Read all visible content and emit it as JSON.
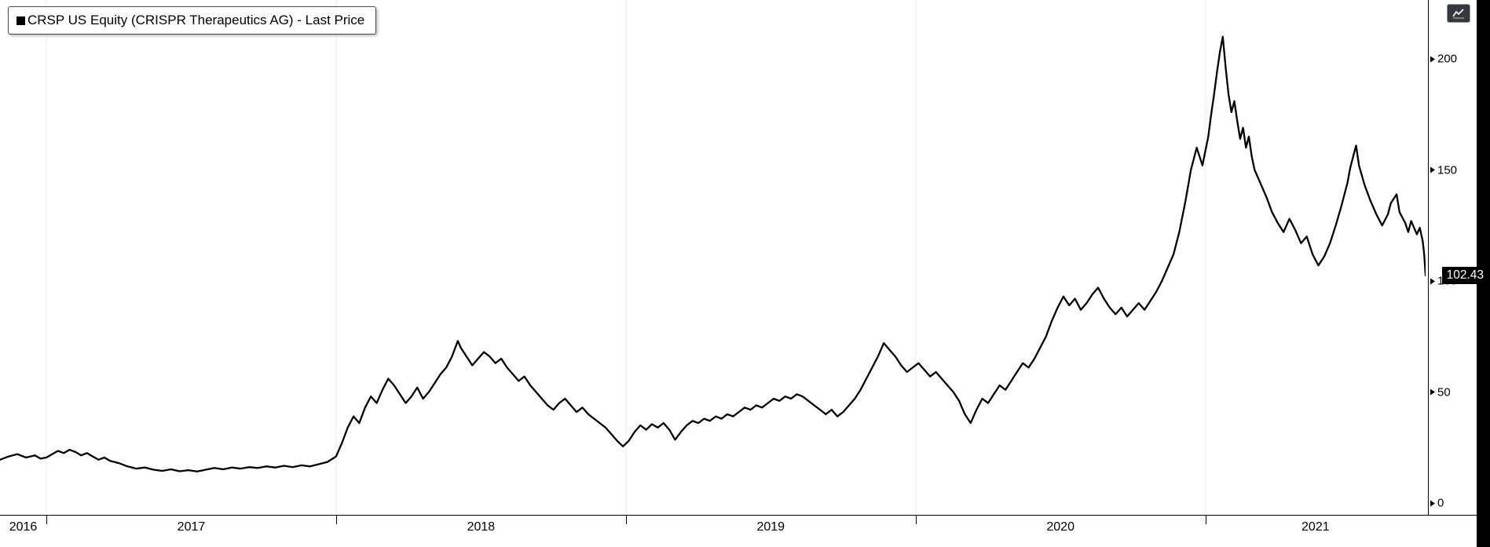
{
  "window": {
    "background": "#ffffff"
  },
  "legend": {
    "label": "CRSP US Equity (CRISPR Therapeutics AG) - Last Price",
    "swatch_color": "#000000"
  },
  "chart_data": {
    "type": "line",
    "title": "CRSP US Equity (CRISPR Therapeutics AG) - Last Price",
    "xlabel": "",
    "ylabel": "",
    "xlim": [
      2016.84,
      2021.76
    ],
    "ylim": [
      0,
      200
    ],
    "y_ticks": [
      0,
      50,
      100,
      150,
      200
    ],
    "x_ticks": [
      {
        "year": 2016,
        "label": "2016"
      },
      {
        "year": 2017,
        "label": "2017"
      },
      {
        "year": 2018,
        "label": "2018"
      },
      {
        "year": 2019,
        "label": "2019"
      },
      {
        "year": 2020,
        "label": "2020"
      },
      {
        "year": 2021,
        "label": "2021"
      }
    ],
    "grid": "vertical-year-boundaries",
    "legend_position": "top-left",
    "line_color": "#000000",
    "background": "#ffffff",
    "last_price": 102.43,
    "last_price_label": "102.43",
    "series": [
      {
        "name": "CRSP US Equity - Last Price",
        "points": [
          [
            2016.84,
            19.5
          ],
          [
            2016.87,
            21
          ],
          [
            2016.9,
            22
          ],
          [
            2016.93,
            20.5
          ],
          [
            2016.96,
            21.5
          ],
          [
            2016.98,
            20
          ],
          [
            2017.0,
            20.5
          ],
          [
            2017.02,
            22
          ],
          [
            2017.04,
            23.5
          ],
          [
            2017.06,
            22.5
          ],
          [
            2017.08,
            24
          ],
          [
            2017.1,
            23
          ],
          [
            2017.12,
            21.5
          ],
          [
            2017.14,
            22.5
          ],
          [
            2017.16,
            21
          ],
          [
            2017.18,
            19.5
          ],
          [
            2017.2,
            20.5
          ],
          [
            2017.22,
            19
          ],
          [
            2017.25,
            18
          ],
          [
            2017.28,
            16.5
          ],
          [
            2017.31,
            15.5
          ],
          [
            2017.34,
            16
          ],
          [
            2017.37,
            15
          ],
          [
            2017.4,
            14.5
          ],
          [
            2017.43,
            15.2
          ],
          [
            2017.46,
            14.3
          ],
          [
            2017.49,
            14.8
          ],
          [
            2017.52,
            14.2
          ],
          [
            2017.55,
            15
          ],
          [
            2017.58,
            15.8
          ],
          [
            2017.61,
            15.2
          ],
          [
            2017.64,
            16
          ],
          [
            2017.67,
            15.5
          ],
          [
            2017.7,
            16.2
          ],
          [
            2017.73,
            15.8
          ],
          [
            2017.76,
            16.5
          ],
          [
            2017.79,
            16
          ],
          [
            2017.82,
            16.8
          ],
          [
            2017.85,
            16.2
          ],
          [
            2017.88,
            17
          ],
          [
            2017.91,
            16.5
          ],
          [
            2017.94,
            17.5
          ],
          [
            2017.97,
            18.5
          ],
          [
            2018.0,
            21
          ],
          [
            2018.02,
            27
          ],
          [
            2018.04,
            34
          ],
          [
            2018.06,
            39
          ],
          [
            2018.08,
            36
          ],
          [
            2018.1,
            43
          ],
          [
            2018.12,
            48
          ],
          [
            2018.14,
            45
          ],
          [
            2018.16,
            51
          ],
          [
            2018.18,
            56
          ],
          [
            2018.2,
            53
          ],
          [
            2018.22,
            49
          ],
          [
            2018.24,
            45
          ],
          [
            2018.26,
            48
          ],
          [
            2018.28,
            52
          ],
          [
            2018.3,
            47
          ],
          [
            2018.32,
            50
          ],
          [
            2018.34,
            54
          ],
          [
            2018.36,
            58
          ],
          [
            2018.38,
            61
          ],
          [
            2018.4,
            66
          ],
          [
            2018.42,
            73
          ],
          [
            2018.43,
            70
          ],
          [
            2018.45,
            66
          ],
          [
            2018.47,
            62
          ],
          [
            2018.49,
            65
          ],
          [
            2018.51,
            68
          ],
          [
            2018.53,
            66
          ],
          [
            2018.55,
            63
          ],
          [
            2018.57,
            65
          ],
          [
            2018.59,
            61
          ],
          [
            2018.61,
            58
          ],
          [
            2018.63,
            55
          ],
          [
            2018.65,
            57
          ],
          [
            2018.67,
            53
          ],
          [
            2018.69,
            50
          ],
          [
            2018.71,
            47
          ],
          [
            2018.73,
            44
          ],
          [
            2018.75,
            42
          ],
          [
            2018.77,
            45
          ],
          [
            2018.79,
            47
          ],
          [
            2018.81,
            44
          ],
          [
            2018.83,
            41
          ],
          [
            2018.85,
            43
          ],
          [
            2018.87,
            40
          ],
          [
            2018.89,
            38
          ],
          [
            2018.91,
            36
          ],
          [
            2018.93,
            34
          ],
          [
            2018.95,
            31
          ],
          [
            2018.97,
            28
          ],
          [
            2018.99,
            25.5
          ],
          [
            2019.01,
            28
          ],
          [
            2019.03,
            32
          ],
          [
            2019.05,
            35
          ],
          [
            2019.07,
            33
          ],
          [
            2019.09,
            35.5
          ],
          [
            2019.11,
            34
          ],
          [
            2019.13,
            36
          ],
          [
            2019.15,
            33
          ],
          [
            2019.17,
            28.5
          ],
          [
            2019.19,
            32
          ],
          [
            2019.21,
            35
          ],
          [
            2019.23,
            37
          ],
          [
            2019.25,
            36
          ],
          [
            2019.27,
            38
          ],
          [
            2019.29,
            37
          ],
          [
            2019.31,
            39
          ],
          [
            2019.33,
            38
          ],
          [
            2019.35,
            40
          ],
          [
            2019.37,
            39
          ],
          [
            2019.39,
            41
          ],
          [
            2019.41,
            43
          ],
          [
            2019.43,
            42
          ],
          [
            2019.45,
            44
          ],
          [
            2019.47,
            43
          ],
          [
            2019.49,
            45
          ],
          [
            2019.51,
            47
          ],
          [
            2019.53,
            46
          ],
          [
            2019.55,
            48
          ],
          [
            2019.57,
            47
          ],
          [
            2019.59,
            49
          ],
          [
            2019.61,
            48
          ],
          [
            2019.63,
            46
          ],
          [
            2019.65,
            44
          ],
          [
            2019.67,
            42
          ],
          [
            2019.69,
            40
          ],
          [
            2019.71,
            42
          ],
          [
            2019.73,
            39
          ],
          [
            2019.75,
            41
          ],
          [
            2019.77,
            44
          ],
          [
            2019.79,
            47
          ],
          [
            2019.81,
            51
          ],
          [
            2019.83,
            56
          ],
          [
            2019.85,
            61
          ],
          [
            2019.87,
            66
          ],
          [
            2019.89,
            72
          ],
          [
            2019.91,
            69
          ],
          [
            2019.93,
            66
          ],
          [
            2019.95,
            62
          ],
          [
            2019.97,
            59
          ],
          [
            2019.99,
            61
          ],
          [
            2020.01,
            63
          ],
          [
            2020.03,
            60
          ],
          [
            2020.05,
            57
          ],
          [
            2020.07,
            59
          ],
          [
            2020.09,
            56
          ],
          [
            2020.11,
            53
          ],
          [
            2020.13,
            50
          ],
          [
            2020.15,
            46
          ],
          [
            2020.17,
            40
          ],
          [
            2020.19,
            36
          ],
          [
            2020.21,
            42
          ],
          [
            2020.23,
            47
          ],
          [
            2020.25,
            45
          ],
          [
            2020.27,
            49
          ],
          [
            2020.29,
            53
          ],
          [
            2020.31,
            51
          ],
          [
            2020.33,
            55
          ],
          [
            2020.35,
            59
          ],
          [
            2020.37,
            63
          ],
          [
            2020.39,
            61
          ],
          [
            2020.41,
            65
          ],
          [
            2020.43,
            70
          ],
          [
            2020.45,
            75
          ],
          [
            2020.47,
            82
          ],
          [
            2020.49,
            88
          ],
          [
            2020.51,
            93
          ],
          [
            2020.53,
            89
          ],
          [
            2020.55,
            92
          ],
          [
            2020.57,
            87
          ],
          [
            2020.59,
            90
          ],
          [
            2020.61,
            94
          ],
          [
            2020.63,
            97
          ],
          [
            2020.65,
            92
          ],
          [
            2020.67,
            88
          ],
          [
            2020.69,
            85
          ],
          [
            2020.71,
            88
          ],
          [
            2020.73,
            84
          ],
          [
            2020.75,
            87
          ],
          [
            2020.77,
            90
          ],
          [
            2020.79,
            87
          ],
          [
            2020.81,
            91
          ],
          [
            2020.83,
            95
          ],
          [
            2020.85,
            100
          ],
          [
            2020.87,
            106
          ],
          [
            2020.89,
            112
          ],
          [
            2020.91,
            122
          ],
          [
            2020.93,
            135
          ],
          [
            2020.95,
            150
          ],
          [
            2020.97,
            160
          ],
          [
            2020.99,
            152
          ],
          [
            2021.01,
            165
          ],
          [
            2021.02,
            175
          ],
          [
            2021.03,
            184
          ],
          [
            2021.04,
            194
          ],
          [
            2021.05,
            203
          ],
          [
            2021.06,
            210
          ],
          [
            2021.07,
            196
          ],
          [
            2021.08,
            184
          ],
          [
            2021.09,
            176
          ],
          [
            2021.1,
            181
          ],
          [
            2021.11,
            172
          ],
          [
            2021.12,
            164
          ],
          [
            2021.13,
            169
          ],
          [
            2021.14,
            160
          ],
          [
            2021.15,
            165
          ],
          [
            2021.16,
            156
          ],
          [
            2021.17,
            150
          ],
          [
            2021.19,
            144
          ],
          [
            2021.21,
            138
          ],
          [
            2021.23,
            131
          ],
          [
            2021.25,
            126
          ],
          [
            2021.27,
            122
          ],
          [
            2021.29,
            128
          ],
          [
            2021.31,
            123
          ],
          [
            2021.33,
            117
          ],
          [
            2021.35,
            120
          ],
          [
            2021.37,
            112
          ],
          [
            2021.39,
            107
          ],
          [
            2021.41,
            111
          ],
          [
            2021.43,
            117
          ],
          [
            2021.45,
            125
          ],
          [
            2021.47,
            134
          ],
          [
            2021.49,
            144
          ],
          [
            2021.5,
            151
          ],
          [
            2021.52,
            161
          ],
          [
            2021.53,
            152
          ],
          [
            2021.55,
            143
          ],
          [
            2021.57,
            136
          ],
          [
            2021.59,
            130
          ],
          [
            2021.61,
            125
          ],
          [
            2021.63,
            130
          ],
          [
            2021.64,
            135
          ],
          [
            2021.66,
            139
          ],
          [
            2021.67,
            131
          ],
          [
            2021.69,
            126
          ],
          [
            2021.7,
            122
          ],
          [
            2021.71,
            127
          ],
          [
            2021.73,
            121
          ],
          [
            2021.74,
            124
          ],
          [
            2021.75,
            118
          ],
          [
            2021.755,
            112
          ],
          [
            2021.76,
            102.43
          ]
        ]
      }
    ]
  }
}
